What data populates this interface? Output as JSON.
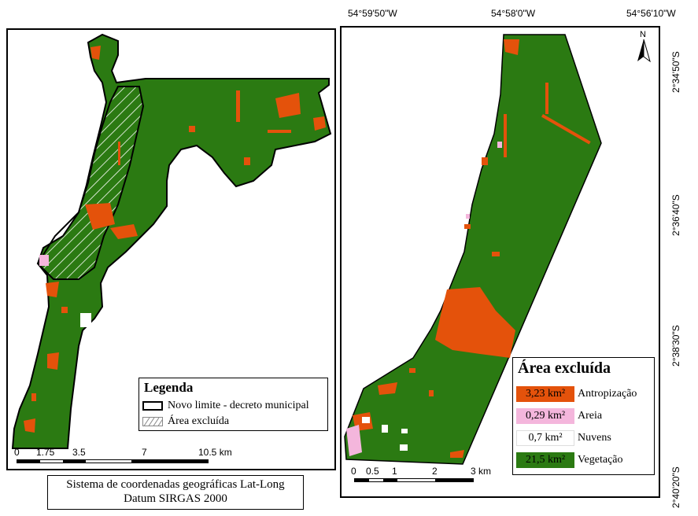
{
  "colors": {
    "vegetacao": "#2b7a12",
    "antropizacao": "#e4520b",
    "areia": "#f4b6dc",
    "nuvens": "#ffffff"
  },
  "left_map": {
    "legend": {
      "title": "Legenda",
      "items": [
        {
          "label": "Novo limite - decreto municipal"
        },
        {
          "label": "Área excluída"
        }
      ]
    },
    "scalebar": {
      "labels": [
        "0",
        "1.75",
        "3.5",
        "7",
        "10.5 km"
      ]
    }
  },
  "crs": {
    "line1": "Sistema de coordenadas geográficas Lat-Long",
    "line2": "Datum SIRGAS 2000"
  },
  "right_map": {
    "longitude_labels": [
      "54°59'50\"W",
      "54°58'0\"W",
      "54°56'10\"W"
    ],
    "latitude_labels": [
      "2°34'50\"S",
      "2°36'40\"S",
      "2°38'30\"S",
      "2°40'20\"S"
    ],
    "north_arrow": "N",
    "area_legend": {
      "title": "Área excluída",
      "items": [
        {
          "value": "3,23 km²",
          "label": "Antropização",
          "color": "#e4520b"
        },
        {
          "value": "0,29 km²",
          "label": "Areia",
          "color": "#f4b6dc"
        },
        {
          "value": "0,7 km²",
          "label": "Nuvens",
          "color": "#ffffff"
        },
        {
          "value": "21,5 km²",
          "label": "Vegetação",
          "color": "#2b7a12"
        }
      ]
    },
    "scalebar": {
      "labels": [
        "0",
        "0.5",
        "1",
        "2",
        "3 km"
      ]
    }
  }
}
